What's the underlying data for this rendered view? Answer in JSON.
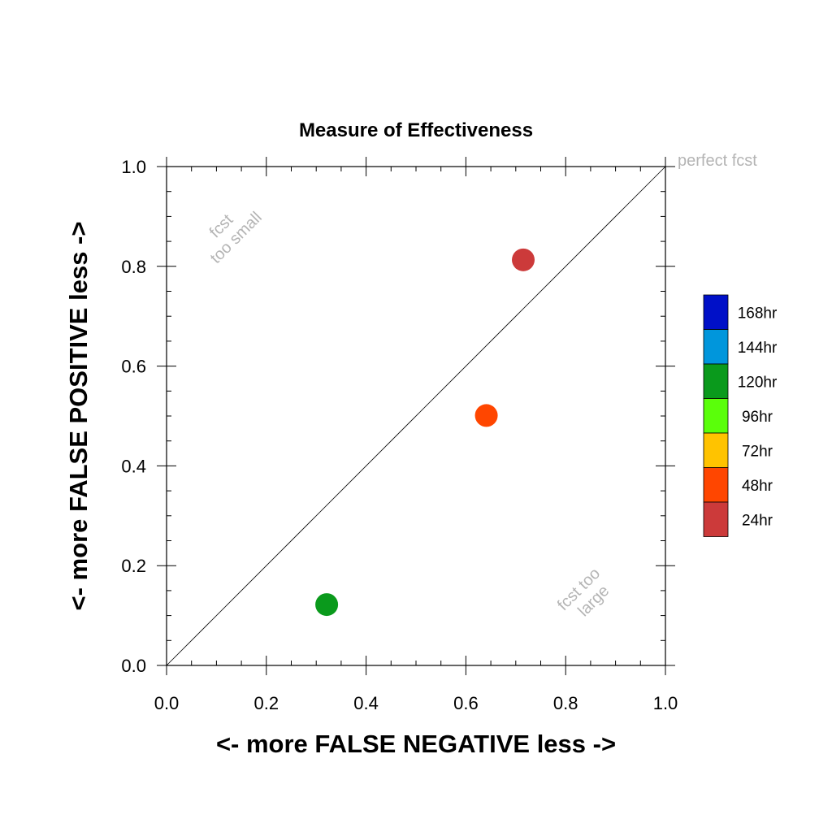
{
  "chart_data": {
    "type": "scatter",
    "title": "Measure of Effectiveness",
    "xlabel": "<- more   FALSE NEGATIVE   less ->",
    "ylabel": "<- more   FALSE POSITIVE   less ->",
    "xlim": [
      0,
      1
    ],
    "ylim": [
      0,
      1
    ],
    "x_ticks": [
      "0.0",
      "0.2",
      "0.4",
      "0.6",
      "0.8",
      "1.0"
    ],
    "y_ticks": [
      "0.0",
      "0.2",
      "0.4",
      "0.6",
      "0.8",
      "1.0"
    ],
    "grid": false,
    "reference_line": {
      "from": [
        0,
        0
      ],
      "to": [
        1,
        1
      ]
    },
    "points": [
      {
        "x": 0.715,
        "y": 0.813,
        "category": "24hr",
        "color": "#cc3a3a"
      },
      {
        "x": 0.641,
        "y": 0.501,
        "category": "48hr",
        "color": "#ff4600"
      },
      {
        "x": 0.321,
        "y": 0.122,
        "category": "120hr",
        "color": "#0a9a1c"
      }
    ],
    "annotations": [
      {
        "text": [
          "perfect fcst"
        ]
      },
      {
        "text": [
          "fcst",
          "too small"
        ]
      },
      {
        "text": [
          "fcst too",
          "large"
        ]
      }
    ],
    "legend": {
      "placement": "right",
      "entries": [
        {
          "label": "168hr",
          "color": "#0010c8"
        },
        {
          "label": "144hr",
          "color": "#0096dc"
        },
        {
          "label": "120hr",
          "color": "#0a9a1c"
        },
        {
          "label": "96hr",
          "color": "#5aff0a"
        },
        {
          "label": "72hr",
          "color": "#ffc300"
        },
        {
          "label": "48hr",
          "color": "#ff4600"
        },
        {
          "label": "24hr",
          "color": "#cc3a3a"
        }
      ]
    }
  }
}
